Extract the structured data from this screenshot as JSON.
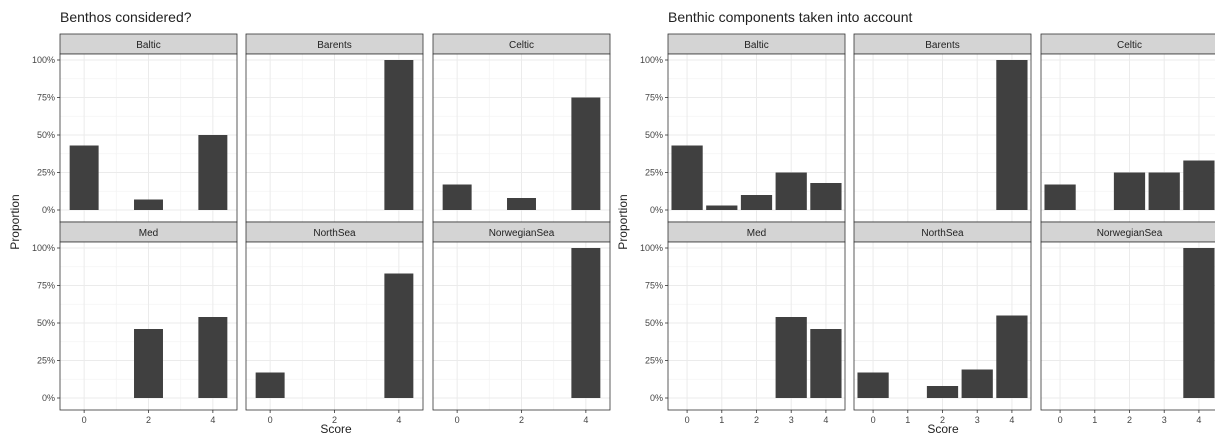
{
  "colors": {
    "bar": "#404040",
    "strip": "#d4d4d4",
    "grid_major": "#ebebeb",
    "grid_minor": "#f4f4f4",
    "border": "#333333"
  },
  "chart_data": [
    {
      "type": "bar",
      "title": "Benthos considered?",
      "xlabel": "Score",
      "ylabel": "Proportion",
      "ylim": [
        0,
        1
      ],
      "yticks": [
        "0%",
        "25%",
        "50%",
        "75%",
        "100%"
      ],
      "x_range": [
        -0.75,
        4.75
      ],
      "xticks": [
        0,
        2,
        4
      ],
      "xtick_labels": [
        "0",
        "2",
        "4"
      ],
      "minor_x": [
        1,
        3
      ],
      "grid": true,
      "facet_layout": "2 rows x 3 columns",
      "panels": [
        {
          "name": "Baltic",
          "bars": [
            {
              "x": 0,
              "y": 0.43
            },
            {
              "x": 2,
              "y": 0.07
            },
            {
              "x": 4,
              "y": 0.5
            }
          ]
        },
        {
          "name": "Barents",
          "bars": [
            {
              "x": 4,
              "y": 1.0
            }
          ]
        },
        {
          "name": "Celtic",
          "bars": [
            {
              "x": 0,
              "y": 0.17
            },
            {
              "x": 2,
              "y": 0.08
            },
            {
              "x": 4,
              "y": 0.75
            }
          ]
        },
        {
          "name": "Med",
          "bars": [
            {
              "x": 2,
              "y": 0.46
            },
            {
              "x": 4,
              "y": 0.54
            }
          ]
        },
        {
          "name": "NorthSea",
          "bars": [
            {
              "x": 0,
              "y": 0.17
            },
            {
              "x": 4,
              "y": 0.83
            }
          ]
        },
        {
          "name": "NorwegianSea",
          "bars": [
            {
              "x": 4,
              "y": 1.0
            }
          ]
        }
      ]
    },
    {
      "type": "bar",
      "title": "Benthic components taken into account",
      "xlabel": "Score",
      "ylabel": "Proportion",
      "ylim": [
        0,
        1
      ],
      "yticks": [
        "0%",
        "25%",
        "50%",
        "75%",
        "100%"
      ],
      "x_range": [
        -0.55,
        4.55
      ],
      "xticks": [
        0,
        1,
        2,
        3,
        4
      ],
      "xtick_labels": [
        "0",
        "1",
        "2",
        "3",
        "4"
      ],
      "minor_x": [],
      "grid": true,
      "facet_layout": "2 rows x 3 columns",
      "panels": [
        {
          "name": "Baltic",
          "bars": [
            {
              "x": 0,
              "y": 0.43
            },
            {
              "x": 1,
              "y": 0.03
            },
            {
              "x": 2,
              "y": 0.1
            },
            {
              "x": 3,
              "y": 0.25
            },
            {
              "x": 4,
              "y": 0.18
            }
          ]
        },
        {
          "name": "Barents",
          "bars": [
            {
              "x": 4,
              "y": 1.0
            }
          ]
        },
        {
          "name": "Celtic",
          "bars": [
            {
              "x": 0,
              "y": 0.17
            },
            {
              "x": 2,
              "y": 0.25
            },
            {
              "x": 3,
              "y": 0.25
            },
            {
              "x": 4,
              "y": 0.33
            }
          ]
        },
        {
          "name": "Med",
          "bars": [
            {
              "x": 3,
              "y": 0.54
            },
            {
              "x": 4,
              "y": 0.46
            }
          ]
        },
        {
          "name": "NorthSea",
          "bars": [
            {
              "x": 0,
              "y": 0.17
            },
            {
              "x": 2,
              "y": 0.08
            },
            {
              "x": 3,
              "y": 0.19
            },
            {
              "x": 4,
              "y": 0.55
            }
          ]
        },
        {
          "name": "NorwegianSea",
          "bars": [
            {
              "x": 4,
              "y": 1.0
            }
          ]
        }
      ]
    }
  ]
}
